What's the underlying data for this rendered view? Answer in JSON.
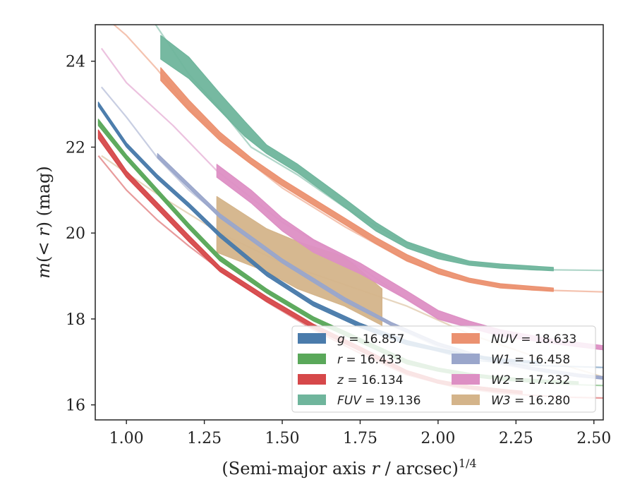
{
  "chart_data": {
    "type": "line",
    "xlabel": "(Semi-major axis r / arcsec)",
    "xlabel_italic": "r",
    "xlabel_exponent": "1/4",
    "ylabel": "m(< r) (mag)",
    "xlim": [
      0.9,
      2.53
    ],
    "ylim": [
      24.85,
      15.65
    ],
    "y_inverted": true,
    "grid": false,
    "legend_position": "lower-right",
    "legend_columns": 2,
    "xticks": [
      1.0,
      1.25,
      1.5,
      1.75,
      2.0,
      2.25,
      2.5
    ],
    "xtick_labels": [
      "1.00",
      "1.25",
      "1.50",
      "1.75",
      "2.00",
      "2.25",
      "2.50"
    ],
    "yticks": [
      16,
      18,
      20,
      22,
      24
    ],
    "ytick_labels": [
      "16",
      "18",
      "20",
      "22",
      "24"
    ],
    "series": [
      {
        "name": "W3",
        "label": "W3 = 16.280",
        "color": "#d4b48a",
        "model": [
          [
            0.92,
            21.8
          ],
          [
            1.1,
            20.9
          ],
          [
            1.3,
            20.0
          ],
          [
            1.5,
            19.3
          ],
          [
            1.7,
            18.8
          ],
          [
            1.9,
            18.3
          ],
          [
            2.1,
            17.65
          ],
          [
            2.3,
            17.15
          ],
          [
            2.53,
            16.65
          ]
        ],
        "band": [
          [
            1.29,
            19.55,
            20.85
          ],
          [
            1.45,
            19.1,
            20.1
          ],
          [
            1.55,
            18.7,
            19.8
          ],
          [
            1.7,
            18.3,
            19.45
          ],
          [
            1.82,
            17.85,
            18.7
          ]
        ]
      },
      {
        "name": "W2",
        "label": "W2 = 17.232",
        "color": "#dd8fc4",
        "model": [
          [
            0.92,
            24.3
          ],
          [
            1.0,
            23.5
          ],
          [
            1.15,
            22.5
          ],
          [
            1.29,
            21.45
          ],
          [
            1.5,
            20.25
          ],
          [
            1.75,
            19.2
          ],
          [
            1.9,
            18.45
          ],
          [
            2.0,
            18.0
          ],
          [
            2.2,
            17.6
          ],
          [
            2.4,
            17.4
          ],
          [
            2.53,
            17.3
          ]
        ],
        "band": [
          [
            1.29,
            21.3,
            21.6
          ],
          [
            1.4,
            20.7,
            21.0
          ],
          [
            1.5,
            20.05,
            20.35
          ],
          [
            1.6,
            19.55,
            19.85
          ],
          [
            1.75,
            19.05,
            19.3
          ],
          [
            1.9,
            18.45,
            18.65
          ],
          [
            2.0,
            18.0,
            18.2
          ],
          [
            2.1,
            17.8,
            17.95
          ],
          [
            2.2,
            17.6,
            17.75
          ],
          [
            2.35,
            17.45,
            17.55
          ],
          [
            2.45,
            17.35,
            17.45
          ],
          [
            2.53,
            17.28,
            17.38
          ]
        ]
      },
      {
        "name": "FUV",
        "label": "FUV = 19.136",
        "color": "#6fb59c",
        "model": [
          [
            1.08,
            25.0
          ],
          [
            1.2,
            23.7
          ],
          [
            1.3,
            22.9
          ],
          [
            1.4,
            22.0
          ],
          [
            1.55,
            21.35
          ],
          [
            1.7,
            20.6
          ],
          [
            1.85,
            19.95
          ],
          [
            1.95,
            19.6
          ],
          [
            2.1,
            19.3
          ],
          [
            2.3,
            19.15
          ],
          [
            2.53,
            19.13
          ]
        ],
        "band": [
          [
            1.11,
            24.05,
            24.6
          ],
          [
            1.2,
            23.6,
            24.1
          ],
          [
            1.3,
            22.85,
            23.25
          ],
          [
            1.38,
            22.25,
            22.6
          ],
          [
            1.45,
            21.85,
            22.05
          ],
          [
            1.55,
            21.4,
            21.6
          ],
          [
            1.7,
            20.6,
            20.8
          ],
          [
            1.8,
            20.05,
            20.25
          ],
          [
            1.9,
            19.65,
            19.8
          ],
          [
            2.0,
            19.4,
            19.55
          ],
          [
            2.1,
            19.25,
            19.35
          ],
          [
            2.2,
            19.18,
            19.28
          ],
          [
            2.37,
            19.12,
            19.2
          ]
        ]
      },
      {
        "name": "NUV",
        "label": "NUV = 18.633",
        "color": "#eb9170",
        "model": [
          [
            0.92,
            25.1
          ],
          [
            1.0,
            24.6
          ],
          [
            1.1,
            23.8
          ],
          [
            1.2,
            22.9
          ],
          [
            1.35,
            21.9
          ],
          [
            1.5,
            21.05
          ],
          [
            1.7,
            20.15
          ],
          [
            1.9,
            19.35
          ],
          [
            2.05,
            18.95
          ],
          [
            2.3,
            18.68
          ],
          [
            2.53,
            18.63
          ]
        ],
        "band": [
          [
            1.11,
            23.55,
            23.85
          ],
          [
            1.2,
            22.85,
            23.1
          ],
          [
            1.3,
            22.15,
            22.35
          ],
          [
            1.4,
            21.6,
            21.75
          ],
          [
            1.5,
            21.1,
            21.25
          ],
          [
            1.6,
            20.65,
            20.8
          ],
          [
            1.7,
            20.2,
            20.35
          ],
          [
            1.8,
            19.75,
            19.9
          ],
          [
            1.9,
            19.35,
            19.5
          ],
          [
            2.0,
            19.05,
            19.18
          ],
          [
            2.1,
            18.85,
            18.95
          ],
          [
            2.2,
            18.72,
            18.82
          ],
          [
            2.37,
            18.64,
            18.72
          ]
        ]
      },
      {
        "name": "W1",
        "label": "W1 = 16.458",
        "color": "#9aa6cb",
        "model": [
          [
            0.92,
            23.4
          ],
          [
            1.0,
            22.7
          ],
          [
            1.1,
            21.75
          ],
          [
            1.2,
            21.0
          ],
          [
            1.35,
            20.1
          ],
          [
            1.5,
            19.35
          ],
          [
            1.7,
            18.45
          ],
          [
            1.85,
            17.85
          ],
          [
            2.0,
            17.35
          ],
          [
            2.2,
            16.95
          ],
          [
            2.35,
            16.75
          ],
          [
            2.53,
            16.6
          ]
        ],
        "band": [
          [
            1.1,
            21.75,
            21.85
          ],
          [
            1.3,
            20.35,
            20.45
          ],
          [
            1.5,
            19.3,
            19.4
          ],
          [
            1.7,
            18.4,
            18.5
          ],
          [
            1.85,
            17.85,
            17.92
          ],
          [
            2.0,
            17.38,
            17.45
          ],
          [
            2.15,
            17.05,
            17.12
          ],
          [
            2.3,
            16.82,
            16.88
          ],
          [
            2.45,
            16.65,
            16.72
          ],
          [
            2.53,
            16.6,
            16.66
          ]
        ]
      },
      {
        "name": "g",
        "label": "g = 16.857",
        "color": "#4a7bab",
        "model": [
          [
            0.91,
            23.0
          ],
          [
            1.0,
            22.05
          ],
          [
            1.1,
            21.3
          ],
          [
            1.2,
            20.65
          ],
          [
            1.3,
            19.95
          ],
          [
            1.45,
            19.05
          ],
          [
            1.6,
            18.35
          ],
          [
            1.75,
            17.85
          ],
          [
            1.9,
            17.45
          ],
          [
            2.1,
            17.05
          ],
          [
            2.3,
            16.92
          ],
          [
            2.53,
            16.87
          ]
        ],
        "band": [
          [
            0.91,
            22.95,
            23.05
          ],
          [
            1.0,
            22.0,
            22.1
          ],
          [
            1.1,
            21.25,
            21.35
          ],
          [
            1.2,
            20.6,
            20.7
          ],
          [
            1.3,
            19.9,
            20.0
          ],
          [
            1.45,
            19.0,
            19.1
          ],
          [
            1.6,
            18.3,
            18.4
          ],
          [
            1.75,
            17.8,
            17.9
          ],
          [
            1.9,
            17.4,
            17.5
          ],
          [
            2.0,
            17.25,
            17.32
          ],
          [
            2.1,
            17.1,
            17.17
          ],
          [
            2.2,
            17.02,
            17.08
          ],
          [
            2.33,
            16.95,
            17.0
          ]
        ]
      },
      {
        "name": "r",
        "label": "r = 16.433",
        "color": "#5aa85a",
        "model": [
          [
            0.91,
            22.6
          ],
          [
            1.0,
            21.75
          ],
          [
            1.1,
            20.95
          ],
          [
            1.2,
            20.15
          ],
          [
            1.3,
            19.4
          ],
          [
            1.45,
            18.65
          ],
          [
            1.6,
            18.0
          ],
          [
            1.75,
            17.5
          ],
          [
            1.9,
            17.0
          ],
          [
            2.05,
            16.75
          ],
          [
            2.2,
            16.58
          ],
          [
            2.4,
            16.48
          ],
          [
            2.53,
            16.45
          ]
        ],
        "band": [
          [
            0.91,
            22.5,
            22.65
          ],
          [
            1.0,
            21.7,
            21.82
          ],
          [
            1.1,
            20.9,
            21.02
          ],
          [
            1.2,
            20.1,
            20.22
          ],
          [
            1.3,
            19.35,
            19.47
          ],
          [
            1.45,
            18.6,
            18.7
          ],
          [
            1.6,
            17.95,
            18.05
          ],
          [
            1.75,
            17.45,
            17.55
          ],
          [
            1.9,
            16.95,
            17.05
          ],
          [
            2.0,
            16.78,
            16.86
          ],
          [
            2.1,
            16.66,
            16.74
          ],
          [
            2.2,
            16.58,
            16.65
          ],
          [
            2.3,
            16.53,
            16.6
          ],
          [
            2.45,
            16.48,
            16.54
          ]
        ]
      },
      {
        "name": "z",
        "label": "z = 16.134",
        "color": "#d6484a",
        "model": [
          [
            0.91,
            21.8
          ],
          [
            1.0,
            21.0
          ],
          [
            1.1,
            20.3
          ],
          [
            1.2,
            19.7
          ],
          [
            1.3,
            19.15
          ],
          [
            1.45,
            18.4
          ],
          [
            1.6,
            17.75
          ],
          [
            1.75,
            17.2
          ],
          [
            1.9,
            16.7
          ],
          [
            2.05,
            16.42
          ],
          [
            2.2,
            16.27
          ],
          [
            2.4,
            16.18
          ],
          [
            2.53,
            16.16
          ]
        ],
        "band": [
          [
            0.91,
            22.2,
            22.4
          ],
          [
            1.0,
            21.3,
            21.45
          ],
          [
            1.1,
            20.55,
            20.7
          ],
          [
            1.2,
            19.8,
            19.95
          ],
          [
            1.3,
            19.1,
            19.22
          ],
          [
            1.45,
            18.4,
            18.52
          ],
          [
            1.6,
            17.78,
            17.88
          ],
          [
            1.75,
            17.25,
            17.35
          ],
          [
            1.9,
            16.72,
            16.8
          ],
          [
            2.0,
            16.5,
            16.58
          ],
          [
            2.1,
            16.38,
            16.45
          ],
          [
            2.2,
            16.3,
            16.37
          ],
          [
            2.27,
            16.26,
            16.32
          ]
        ]
      }
    ],
    "legend": [
      {
        "name": "g",
        "label": "g = 16.857",
        "color": "#4a7bab"
      },
      {
        "name": "r",
        "label": "r = 16.433",
        "color": "#5aa85a"
      },
      {
        "name": "z",
        "label": "z = 16.134",
        "color": "#d6484a"
      },
      {
        "name": "FUV",
        "label": "FUV = 19.136",
        "color": "#6fb59c"
      },
      {
        "name": "NUV",
        "label": "NUV = 18.633",
        "color": "#eb9170"
      },
      {
        "name": "W1",
        "label": "W1 = 16.458",
        "color": "#9aa6cb"
      },
      {
        "name": "W2",
        "label": "W2 = 17.232",
        "color": "#dd8fc4"
      },
      {
        "name": "W3",
        "label": "W3 = 16.280",
        "color": "#d4b48a"
      }
    ]
  }
}
